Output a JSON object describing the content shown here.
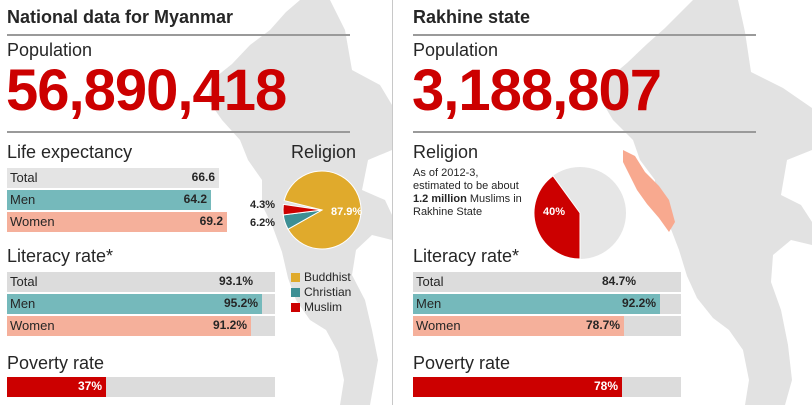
{
  "left": {
    "heading": "National data for Myanmar",
    "population_label": "Population",
    "population_value": "56,890,418",
    "life_expectancy": {
      "title": "Life expectancy",
      "rows": [
        {
          "name": "Total",
          "display": "66.6"
        },
        {
          "name": "Men",
          "display": "64.2"
        },
        {
          "name": "Women",
          "display": "69.2"
        }
      ]
    },
    "religion": {
      "title": "Religion",
      "legend": [
        "Buddhist",
        "Christian",
        "Muslim"
      ]
    },
    "literacy": {
      "title": "Literacy rate*",
      "rows": [
        {
          "name": "Total",
          "display": "93.1%"
        },
        {
          "name": "Men",
          "display": "95.2%"
        },
        {
          "name": "Women",
          "display": "91.2%"
        }
      ]
    },
    "poverty": {
      "title": "Poverty rate",
      "display": "37%"
    }
  },
  "right": {
    "heading": "Rakhine state",
    "population_label": "Population",
    "population_value": "3,188,807",
    "religion": {
      "title": "Religion",
      "note_pre": "As of 2012-3, estimated to be about ",
      "note_bold": "1.2 million",
      "note_post": " Muslims in Rakhine State"
    },
    "literacy": {
      "title": "Literacy rate*",
      "rows": [
        {
          "name": "Total",
          "display": "84.7%"
        },
        {
          "name": "Men",
          "display": "92.2%"
        },
        {
          "name": "Women",
          "display": "78.7%"
        }
      ]
    },
    "poverty": {
      "title": "Poverty rate",
      "display": "78%"
    }
  },
  "colors": {
    "accent_red": "#cc0000",
    "buddhist": "#e0aa2c",
    "christian": "#3d8f94",
    "muslim": "#cc0000",
    "men": "#75b9bb",
    "women": "#f5b09b",
    "total": "#dcdcdc",
    "rakhine_highlight": "#f8a98f",
    "pie_rest": "#e6e6e6"
  },
  "chart_data": [
    {
      "type": "bar",
      "title": "Life expectancy",
      "categories": [
        "Total",
        "Men",
        "Women"
      ],
      "values": [
        66.6,
        64.2,
        69.2
      ]
    },
    {
      "type": "pie",
      "title": "Religion",
      "categories": [
        "Buddhist",
        "Christian",
        "Muslim"
      ],
      "values": [
        87.9,
        6.2,
        4.3
      ],
      "labels": [
        "87.9%",
        "6.2%",
        "4.3%"
      ]
    },
    {
      "type": "bar",
      "title": "Literacy rate*",
      "categories": [
        "Total",
        "Men",
        "Women"
      ],
      "values": [
        93.1,
        95.2,
        91.2
      ],
      "ylim": [
        0,
        100
      ]
    },
    {
      "type": "bar",
      "title": "Poverty rate",
      "categories": [
        ""
      ],
      "values": [
        37
      ],
      "ylim": [
        0,
        100
      ]
    },
    {
      "type": "pie",
      "title": "Religion",
      "categories": [
        ""
      ],
      "values": [
        40
      ],
      "labels": [
        "40%"
      ]
    },
    {
      "type": "bar",
      "title": "Literacy rate*",
      "categories": [
        "Total",
        "Men",
        "Women"
      ],
      "values": [
        84.7,
        92.2,
        78.7
      ],
      "ylim": [
        0,
        100
      ]
    },
    {
      "type": "bar",
      "title": "Poverty rate",
      "categories": [
        ""
      ],
      "values": [
        78
      ],
      "ylim": [
        0,
        100
      ]
    }
  ]
}
